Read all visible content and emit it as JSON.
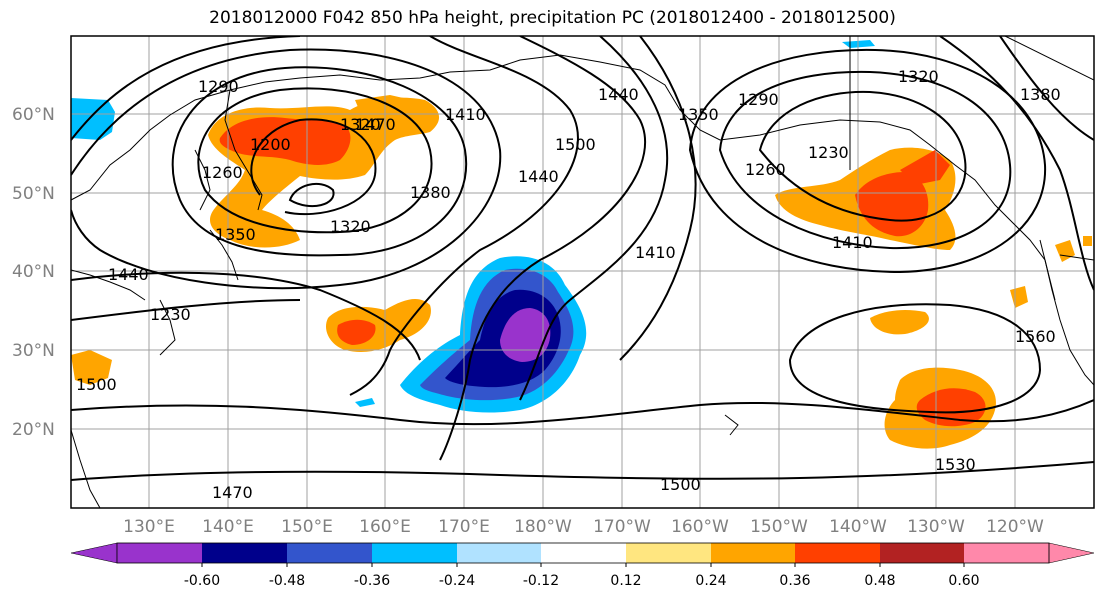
{
  "title": "2018012000 F042 850 hPa height, precipitation PC (2018012400 - 2018012500)",
  "map": {
    "lat_labels": [
      "60°N",
      "50°N",
      "40°N",
      "30°N",
      "20°N"
    ],
    "lon_labels": [
      "130°E",
      "140°E",
      "150°E",
      "160°E",
      "170°E",
      "180°W",
      "170°W",
      "160°W",
      "150°W",
      "140°W",
      "130°W",
      "120°W"
    ],
    "contour_labels": [
      "1290",
      "1200",
      "1260",
      "1350",
      "1440",
      "1440",
      "1410",
      "1470",
      "1500",
      "1440",
      "1380",
      "1320",
      "1410",
      "1350",
      "1290",
      "1260",
      "1230",
      "1410",
      "1320",
      "1380",
      "1560",
      "1530",
      "1500",
      "1470",
      "1500",
      "1320",
      "1230"
    ]
  },
  "colorbar": {
    "colors": [
      "#9933cc",
      "#00008b",
      "#3355cc",
      "#00bfff",
      "#b0e2ff",
      "#ffffff",
      "#ffffff",
      "#ffe680",
      "#ffa500",
      "#ff4000",
      "#b22222",
      "#ff88aa"
    ],
    "tick_labels": [
      "-0.60",
      "-0.48",
      "-0.36",
      "-0.24",
      "-0.12",
      "0.12",
      "0.24",
      "0.36",
      "0.48",
      "0.60"
    ]
  }
}
